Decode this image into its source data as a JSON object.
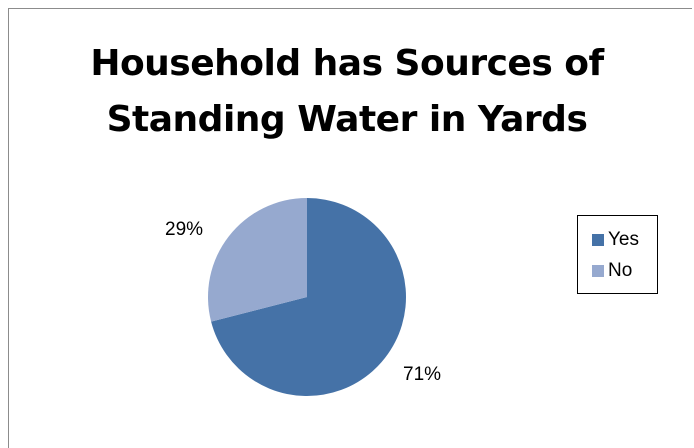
{
  "chart_data": {
    "type": "pie",
    "title": "Household has Sources of Standing Water in Yards",
    "title_lines": [
      "Household has Sources of",
      "Standing Water in Yards"
    ],
    "categories": [
      "Yes",
      "No"
    ],
    "values": [
      71,
      29
    ],
    "data_labels": [
      "71%",
      "29%"
    ],
    "colors": [
      "#4572A7",
      "#96A9CF"
    ],
    "legend_position": "right"
  }
}
